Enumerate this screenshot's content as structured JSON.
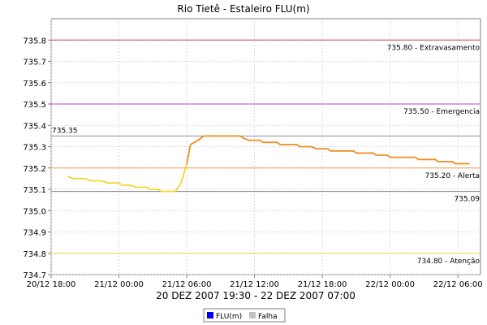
{
  "chart_data": {
    "type": "line",
    "title": "Rio Tietê - Estaleiro FLU(m)",
    "subtitle": "20 DEZ 2007 19:30 - 22 DEZ 2007 07:00",
    "x_ticks": [
      "20/12 18:00",
      "21/12 00:00",
      "21/12 06:00",
      "21/12 12:00",
      "21/12 18:00",
      "22/12 00:00",
      "22/12 06:00"
    ],
    "x_range": [
      "20/12 18:00",
      "22/12 08:00"
    ],
    "ylim": [
      734.7,
      735.9
    ],
    "y_ticks": [
      734.7,
      734.8,
      734.9,
      735.0,
      735.1,
      735.2,
      735.3,
      735.4,
      735.5,
      735.6,
      735.7,
      735.8
    ],
    "grid": true,
    "legend_position": "bottom",
    "legend": [
      {
        "name": "FLU(m)",
        "color": "#0000ff"
      },
      {
        "name": "Falha",
        "color": "#c0c0c0"
      }
    ],
    "reference_lines": [
      {
        "value": 735.8,
        "label": "735.80 - Extravasamento",
        "color": "#d04040"
      },
      {
        "value": 735.5,
        "label": "735.50 - Emergencia",
        "color": "#c040c0"
      },
      {
        "value": 735.35,
        "label": "735.35",
        "color": "#909090"
      },
      {
        "value": 735.2,
        "label": "735.20 - Alerta",
        "color": "#f0a040"
      },
      {
        "value": 735.09,
        "label": "735.09",
        "color": "#808080"
      },
      {
        "value": 734.8,
        "label": "734.80 - Atenção",
        "color": "#e8e040"
      }
    ],
    "series": [
      {
        "name": "FLU(m)",
        "segments": [
          {
            "color": "#f0d830",
            "points": [
              [
                "20/12 19:30",
                735.16
              ],
              [
                "20/12 20:00",
                735.15
              ],
              [
                "20/12 21:00",
                735.15
              ],
              [
                "20/12 21:30",
                735.14
              ],
              [
                "20/12 22:30",
                735.14
              ],
              [
                "20/12 23:00",
                735.13
              ],
              [
                "21/12 00:00",
                735.13
              ],
              [
                "21/12 00:15",
                735.12
              ],
              [
                "21/12 01:00",
                735.12
              ],
              [
                "21/12 01:30",
                735.11
              ],
              [
                "21/12 02:30",
                735.11
              ],
              [
                "21/12 02:45",
                735.1
              ],
              [
                "21/12 03:30",
                735.1
              ],
              [
                "21/12 03:45",
                735.09
              ],
              [
                "21/12 05:00",
                735.09
              ],
              [
                "21/12 05:30",
                735.13
              ],
              [
                "21/12 06:00",
                735.22
              ]
            ]
          },
          {
            "color": "#f08c20",
            "points": [
              [
                "21/12 06:00",
                735.22
              ],
              [
                "21/12 06:20",
                735.31
              ],
              [
                "21/12 07:00",
                735.33
              ],
              [
                "21/12 07:30",
                735.35
              ],
              [
                "21/12 10:45",
                735.35
              ],
              [
                "21/12 11:00",
                735.34
              ],
              [
                "21/12 11:30",
                735.33
              ],
              [
                "21/12 12:30",
                735.33
              ],
              [
                "21/12 12:45",
                735.32
              ],
              [
                "21/12 14:00",
                735.32
              ],
              [
                "21/12 14:15",
                735.31
              ],
              [
                "21/12 15:45",
                735.31
              ],
              [
                "21/12 16:00",
                735.3
              ],
              [
                "21/12 17:00",
                735.3
              ],
              [
                "21/12 17:30",
                735.29
              ],
              [
                "21/12 18:30",
                735.29
              ],
              [
                "21/12 18:45",
                735.28
              ],
              [
                "21/12 20:45",
                735.28
              ],
              [
                "21/12 21:00",
                735.27
              ],
              [
                "21/12 22:30",
                735.27
              ],
              [
                "21/12 22:45",
                735.26
              ],
              [
                "21/12 23:45",
                735.26
              ],
              [
                "22/12 00:00",
                735.25
              ],
              [
                "22/12 02:15",
                735.25
              ],
              [
                "22/12 02:30",
                735.24
              ],
              [
                "22/12 04:00",
                735.24
              ],
              [
                "22/12 04:15",
                735.23
              ],
              [
                "22/12 05:30",
                735.23
              ],
              [
                "22/12 05:45",
                735.22
              ],
              [
                "22/12 07:00",
                735.22
              ]
            ]
          }
        ]
      }
    ]
  }
}
